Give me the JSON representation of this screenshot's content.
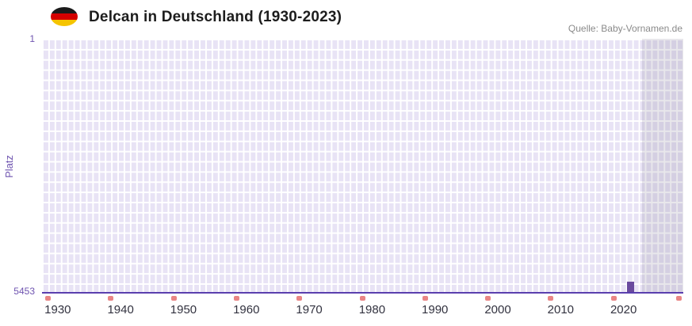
{
  "header": {
    "title": "Delcan in Deutschland (1930-2023)",
    "source": "Quelle: Baby-Vornamen.de",
    "flag_icon": "germany-flag",
    "flag_colors": [
      "#1a1a1a",
      "#d40000",
      "#f5c400"
    ]
  },
  "chart_data": {
    "type": "bar",
    "title": "Delcan in Deutschland (1930-2023)",
    "ylabel": "Platz",
    "xlabel": "",
    "y_axis": {
      "top_tick_label": "1",
      "bottom_tick_label": "5453",
      "min": 1,
      "max": 5453,
      "inverted": true
    },
    "x_axis": {
      "tick_labels": [
        "1930",
        "1940",
        "1950",
        "1960",
        "1970",
        "1980",
        "1990",
        "2000",
        "2010",
        "2020"
      ],
      "data_range": [
        1930,
        2023
      ]
    },
    "series": [
      {
        "name": "Delcan",
        "points": [
          {
            "x": 2021,
            "y": 5453
          }
        ]
      }
    ],
    "shaded_region": {
      "from_x": 2023,
      "to": "axis-end"
    },
    "decade_markers": [
      1930,
      1940,
      1950,
      1960,
      1970,
      1980,
      1990,
      2000,
      2010,
      2020
    ],
    "axis_end_marker": true,
    "grid": true,
    "legend": "none",
    "colors": {
      "plot_background": "#e8e3f5",
      "grid_lines": "#ffffff",
      "bar": "#6a4a9e",
      "x_axis_line": "#5a3fae",
      "decade_marker": "#e98585",
      "shaded_region": "rgba(90,85,110,0.14)",
      "y_label": "#6f54b0",
      "x_tick_label": "#32323f",
      "title": "#1d1d1d",
      "source": "#8a8a8a"
    }
  }
}
